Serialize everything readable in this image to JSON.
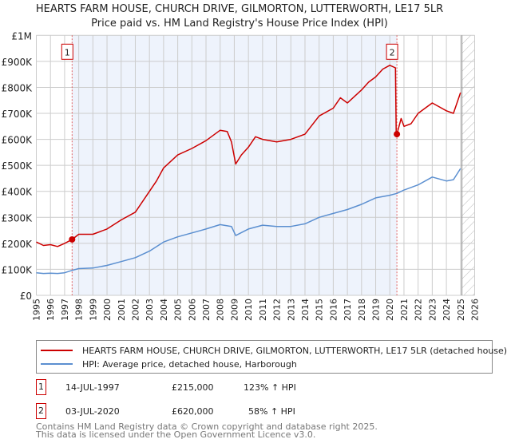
{
  "title": "HEARTS FARM HOUSE, CHURCH DRIVE, GILMORTON, LUTTERWORTH, LE17 5LR",
  "subtitle": "Price paid vs. HM Land Registry's House Price Index (HPI)",
  "chart_data": {
    "type": "line",
    "xlim": [
      1995,
      2026
    ],
    "ylim": [
      0,
      1000000
    ],
    "x_ticks": [
      "1995",
      "1996",
      "1997",
      "1998",
      "1999",
      "2000",
      "2001",
      "2002",
      "2003",
      "2004",
      "2005",
      "2006",
      "2007",
      "2008",
      "2009",
      "2010",
      "2011",
      "2012",
      "2013",
      "2014",
      "2015",
      "2016",
      "2017",
      "2018",
      "2019",
      "2020",
      "2021",
      "2022",
      "2023",
      "2024",
      "2025",
      "2026"
    ],
    "y_ticks": [
      {
        "v": 0,
        "label": "£0"
      },
      {
        "v": 100000,
        "label": "£100K"
      },
      {
        "v": 200000,
        "label": "£200K"
      },
      {
        "v": 300000,
        "label": "£300K"
      },
      {
        "v": 400000,
        "label": "£400K"
      },
      {
        "v": 500000,
        "label": "£500K"
      },
      {
        "v": 600000,
        "label": "£600K"
      },
      {
        "v": 700000,
        "label": "£700K"
      },
      {
        "v": 800000,
        "label": "£800K"
      },
      {
        "v": 900000,
        "label": "£900K"
      },
      {
        "v": 1000000,
        "label": "£1M"
      }
    ],
    "grid": true,
    "shaded_range": [
      1997.53,
      2020.5
    ],
    "forecast_hatched_from": 2025.1,
    "series": [
      {
        "name": "HEARTS FARM HOUSE, CHURCH DRIVE, GILMORTON, LUTTERWORTH, LE17 5LR (detached house)",
        "color": "#cc0000",
        "x": [
          1995,
          1995.5,
          1996,
          1996.5,
          1997,
          1997.53,
          1998,
          1999,
          2000,
          2001,
          2002,
          2003,
          2003.5,
          2004,
          2005,
          2006,
          2007,
          2008,
          2008.5,
          2008.8,
          2009.1,
          2009.5,
          2010,
          2010.5,
          2011,
          2012,
          2013,
          2014,
          2015,
          2016,
          2016.5,
          2017,
          2018,
          2018.5,
          2019,
          2019.5,
          2020,
          2020.4,
          2020.45,
          2020.5,
          2020.8,
          2021,
          2021.5,
          2022,
          2022.5,
          2023,
          2023.5,
          2024,
          2024.5,
          2025
        ],
        "y": [
          205000,
          192000,
          195000,
          188000,
          200000,
          215000,
          235000,
          235000,
          255000,
          290000,
          320000,
          400000,
          440000,
          490000,
          540000,
          565000,
          595000,
          635000,
          630000,
          590000,
          505000,
          540000,
          570000,
          610000,
          600000,
          590000,
          600000,
          620000,
          690000,
          720000,
          760000,
          740000,
          790000,
          820000,
          840000,
          870000,
          885000,
          875000,
          630000,
          620000,
          680000,
          650000,
          660000,
          700000,
          720000,
          740000,
          725000,
          710000,
          700000,
          780000
        ]
      },
      {
        "name": "HPI: Average price, detached house, Harborough",
        "color": "#5b8fd0",
        "x": [
          1995,
          1995.5,
          1996,
          1996.5,
          1997,
          1997.53,
          1998,
          1999,
          2000,
          2001,
          2002,
          2003,
          2004,
          2005,
          2006,
          2007,
          2008,
          2008.8,
          2009.1,
          2010,
          2011,
          2012,
          2013,
          2014,
          2015,
          2016,
          2017,
          2018,
          2019,
          2020,
          2020.5,
          2021,
          2022,
          2023,
          2024,
          2024.5,
          2025
        ],
        "y": [
          87000,
          84000,
          85000,
          84000,
          87000,
          96000,
          103000,
          105000,
          115000,
          130000,
          145000,
          170000,
          205000,
          225000,
          240000,
          255000,
          272000,
          265000,
          230000,
          255000,
          270000,
          265000,
          265000,
          275000,
          300000,
          315000,
          330000,
          350000,
          375000,
          385000,
          392000,
          405000,
          425000,
          455000,
          440000,
          445000,
          488000
        ]
      }
    ],
    "annotations": [
      {
        "label": "1",
        "x": 1997.53,
        "y": 215000
      },
      {
        "label": "2",
        "x": 2020.5,
        "y": 620000
      }
    ]
  },
  "legend": {
    "property": "HEARTS FARM HOUSE, CHURCH DRIVE, GILMORTON, LUTTERWORTH, LE17 5LR (detached house)",
    "hpi": "HPI: Average price, detached house, Harborough"
  },
  "sales": [
    {
      "num": "1",
      "date": "14-JUL-1997",
      "price": "£215,000",
      "hpi": "123% ↑ HPI"
    },
    {
      "num": "2",
      "date": "03-JUL-2020",
      "price": "£620,000",
      "hpi": "58% ↑ HPI"
    }
  ],
  "footer": {
    "line1": "Contains HM Land Registry data © Crown copyright and database right 2025.",
    "line2": "This data is licensed under the Open Government Licence v3.0."
  }
}
